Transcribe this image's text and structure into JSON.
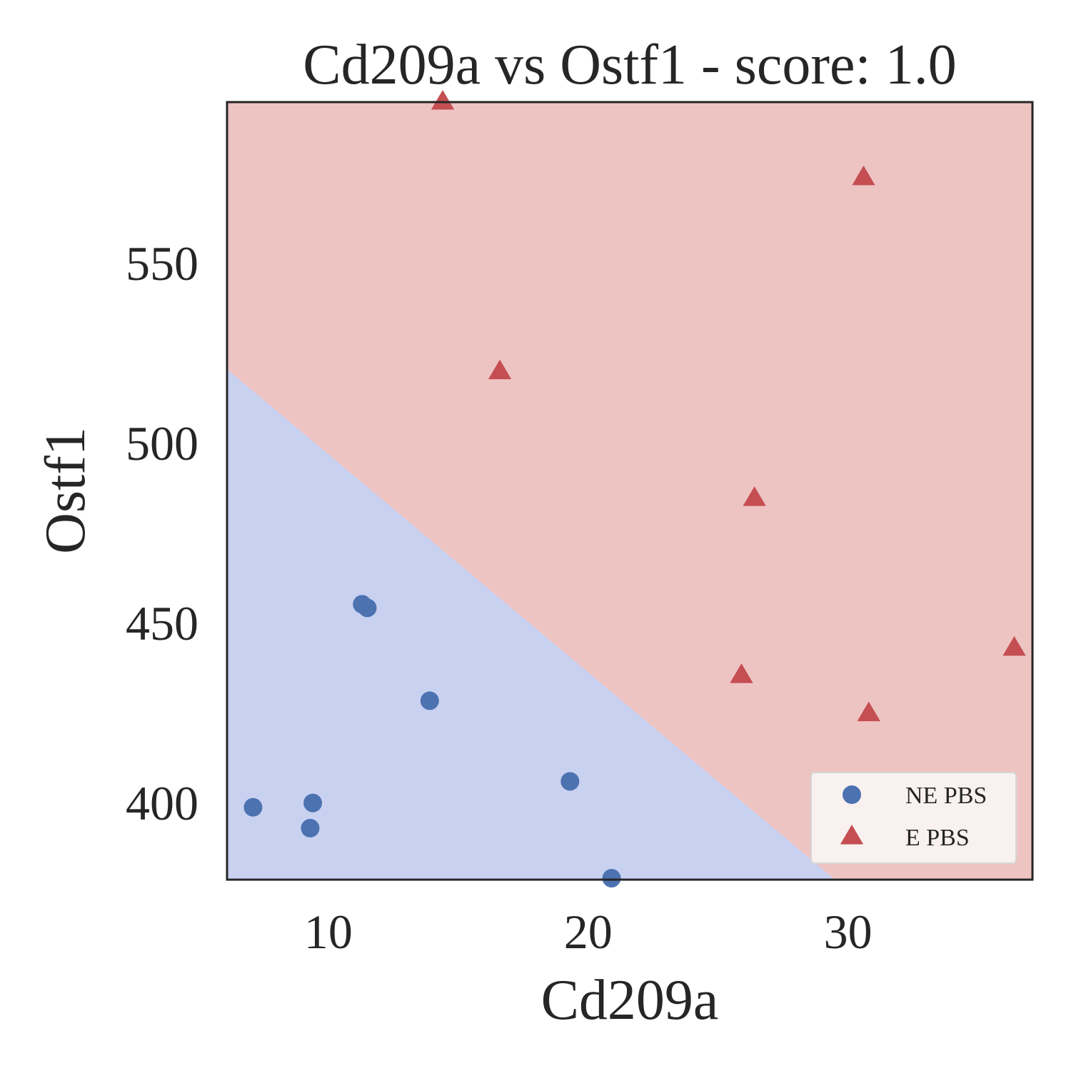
{
  "chart_data": {
    "type": "scatter",
    "title": "Cd209a vs Ostf1 - score: 1.0",
    "xlabel": "Cd209a",
    "ylabel": "Ostf1",
    "xlim": [
      6.1,
      37.1
    ],
    "ylim": [
      378.6,
      594.6
    ],
    "xticks": [
      10,
      20,
      30
    ],
    "yticks": [
      400,
      450,
      500,
      550
    ],
    "grid": false,
    "legend_position": "bottom-right",
    "decision_regions": {
      "boundary": [
        [
          6.1,
          520.4
        ],
        [
          29.5,
          378.6
        ]
      ],
      "below_color": "#c9d1f1",
      "above_color": "#eec4c3",
      "below_class": "NE PBS",
      "above_class": "E PBS"
    },
    "series": [
      {
        "name": "NE PBS",
        "marker": "circle",
        "color": "#4c72b0",
        "points": [
          [
            7.1,
            398.7
          ],
          [
            9.4,
            399.9
          ],
          [
            9.3,
            392.9
          ],
          [
            11.3,
            455.1
          ],
          [
            11.5,
            454.1
          ],
          [
            13.9,
            428.3
          ],
          [
            19.3,
            405.9
          ],
          [
            20.9,
            379.0
          ]
        ]
      },
      {
        "name": "E PBS",
        "marker": "triangle",
        "color": "#c44e52",
        "points": [
          [
            14.4,
            594.6
          ],
          [
            16.6,
            519.7
          ],
          [
            30.6,
            573.6
          ],
          [
            26.4,
            484.5
          ],
          [
            25.9,
            435.3
          ],
          [
            30.8,
            424.7
          ],
          [
            36.4,
            442.9
          ]
        ]
      }
    ]
  }
}
